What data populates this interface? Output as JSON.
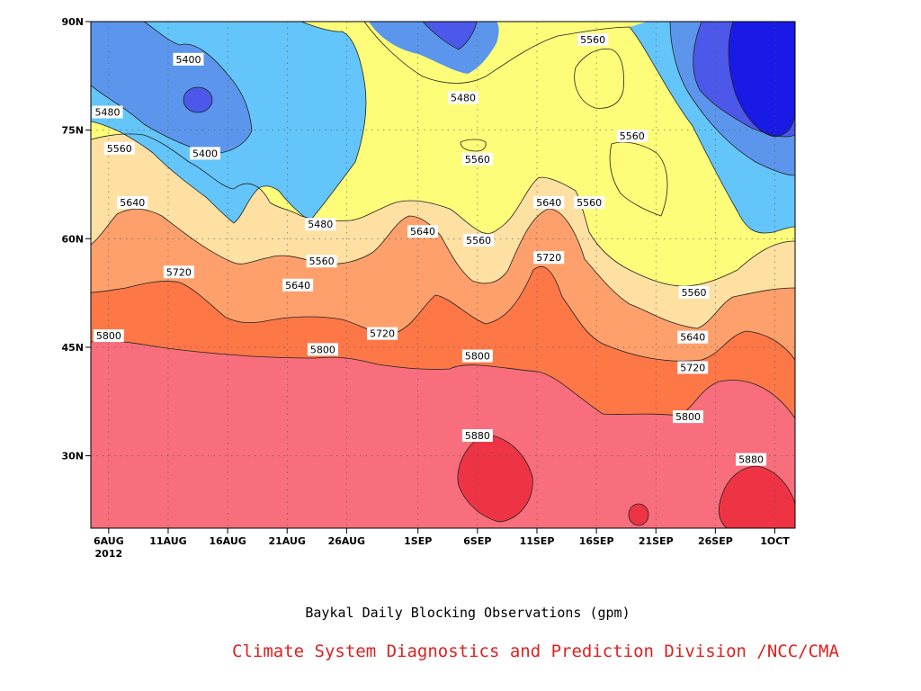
{
  "chart_data": {
    "type": "heatmap",
    "subtype": "time-latitude filled contour",
    "title": "Baykal Daily Blocking Observations (gpm)",
    "xlabel": "",
    "ylabel": "",
    "x_ticks": [
      "6AUG",
      "11AUG",
      "16AUG",
      "21AUG",
      "26AUG",
      "1SEP",
      "6SEP",
      "11SEP",
      "16SEP",
      "21SEP",
      "26SEP",
      "1OCT"
    ],
    "x_tick_days": [
      0,
      5,
      10,
      15,
      20,
      26,
      31,
      36,
      41,
      46,
      51,
      56
    ],
    "x_year_label": "2012",
    "xlim_days": [
      -1.5,
      57.7
    ],
    "y_ticks": [
      "30N",
      "45N",
      "60N",
      "75N",
      "90N"
    ],
    "y_tick_values": [
      30,
      45,
      60,
      75,
      90
    ],
    "ylim": [
      20,
      90
    ],
    "contour_levels": [
      5400,
      5480,
      5560,
      5640,
      5720,
      5800,
      5880
    ],
    "fill_colors": [
      "#1a1ae6",
      "#4b58ea",
      "#5b96ec",
      "#63c5fa",
      "#fdfd79",
      "#fee0a2",
      "#fea06c",
      "#fd7747",
      "#f86e7c",
      "#ee3444"
    ],
    "line_color": "#222222",
    "contour_labels": [
      {
        "text": "5400",
        "day": 6.7,
        "lat": 84.8
      },
      {
        "text": "5400",
        "day": 8.1,
        "lat": 71.8
      },
      {
        "text": "5480",
        "day": -0.1,
        "lat": 77.5
      },
      {
        "text": "5480",
        "day": 29.8,
        "lat": 79.5
      },
      {
        "text": "5480",
        "day": 17.8,
        "lat": 62.0
      },
      {
        "text": "5560",
        "day": 40.7,
        "lat": 87.5
      },
      {
        "text": "5560",
        "day": 0.9,
        "lat": 72.5
      },
      {
        "text": "5560",
        "day": 31.0,
        "lat": 71.0
      },
      {
        "text": "5560",
        "day": 44.0,
        "lat": 74.2
      },
      {
        "text": "5560",
        "day": 40.4,
        "lat": 65.0
      },
      {
        "text": "5560",
        "day": 31.1,
        "lat": 59.8
      },
      {
        "text": "5560",
        "day": 17.9,
        "lat": 56.9
      },
      {
        "text": "5560",
        "day": 49.2,
        "lat": 52.6
      },
      {
        "text": "5640",
        "day": 2.0,
        "lat": 65.0
      },
      {
        "text": "5640",
        "day": 37.0,
        "lat": 65.0
      },
      {
        "text": "5640",
        "day": 26.4,
        "lat": 61.0
      },
      {
        "text": "5640",
        "day": 15.9,
        "lat": 53.6
      },
      {
        "text": "5640",
        "day": 49.1,
        "lat": 46.4
      },
      {
        "text": "5720",
        "day": 5.9,
        "lat": 55.4
      },
      {
        "text": "5720",
        "day": 37.0,
        "lat": 57.4
      },
      {
        "text": "5720",
        "day": 23.0,
        "lat": 46.9
      },
      {
        "text": "5720",
        "day": 49.1,
        "lat": 42.2
      },
      {
        "text": "5800",
        "day": 0.0,
        "lat": 46.6
      },
      {
        "text": "5800",
        "day": 18.0,
        "lat": 44.7
      },
      {
        "text": "5800",
        "day": 31.0,
        "lat": 43.8
      },
      {
        "text": "5800",
        "day": 48.7,
        "lat": 35.4
      },
      {
        "text": "5880",
        "day": 31.0,
        "lat": 32.8
      },
      {
        "text": "5880",
        "day": 54.0,
        "lat": 29.5
      }
    ]
  },
  "caption": "Baykal Daily Blocking Observations (gpm)",
  "credit": {
    "text": "Climate System Diagnostics and Prediction Division /NCC/CMA",
    "color": "#e02020"
  }
}
